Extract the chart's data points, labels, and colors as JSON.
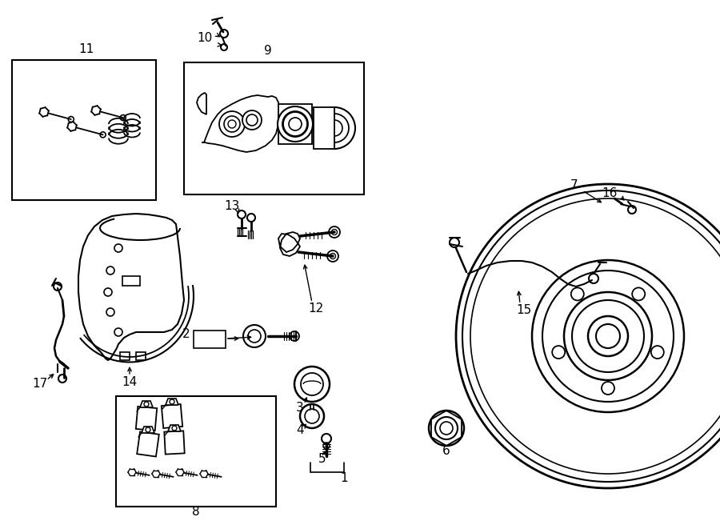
{
  "background_color": "#ffffff",
  "fig_width": 9.0,
  "fig_height": 6.61,
  "dpi": 100
}
